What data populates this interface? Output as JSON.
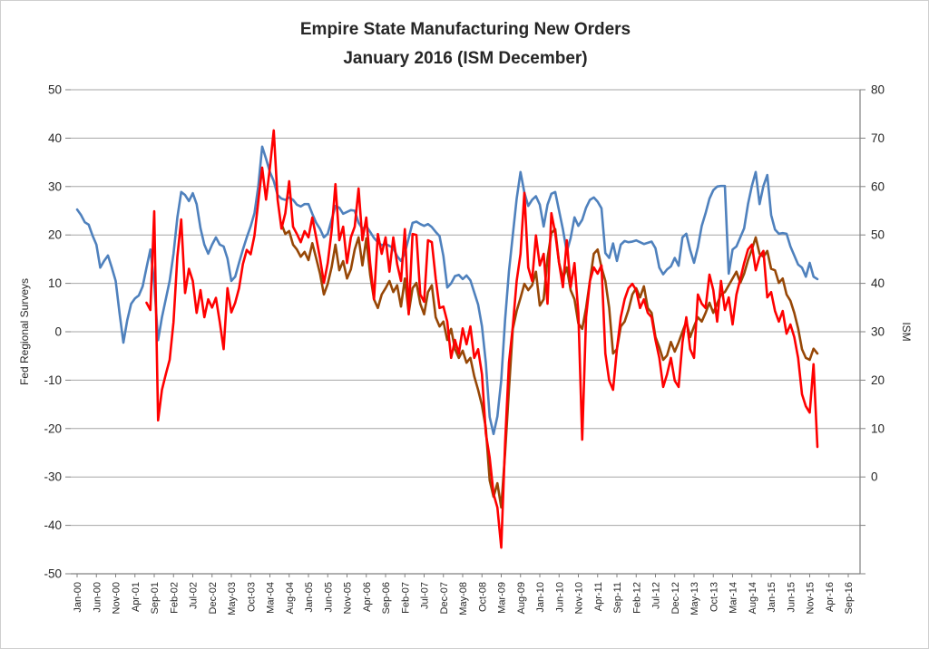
{
  "chart_data": {
    "type": "line",
    "title": "Empire State Manufacturing New Orders",
    "subtitle": "January 2016 (ISM December)",
    "x": {
      "start": "Jan-2000",
      "end": "Sep-2016",
      "frequency": "monthly",
      "tick_every_n_months": 5,
      "tick_labels": [
        "Jan-00",
        "Jun-00",
        "Nov-00",
        "Apr-01",
        "Sep-01",
        "Feb-02",
        "Jul-02",
        "Dec-02",
        "May-03",
        "Oct-03",
        "Mar-04",
        "Aug-04",
        "Jan-05",
        "Jun-05",
        "Nov-05",
        "Apr-06",
        "Sep-06",
        "Feb-07",
        "Jul-07",
        "Dec-07",
        "May-08",
        "Oct-08",
        "Mar-09",
        "Aug-09",
        "Jan-10",
        "Jun-10",
        "Nov-10",
        "Apr-11",
        "Sep-11",
        "Feb-12",
        "Jul-12",
        "Dec-12",
        "May-13",
        "Oct-13",
        "Mar-14",
        "Aug-14",
        "Jan-15",
        "Jun-15",
        "Nov-15",
        "Apr-16",
        "Sep-16"
      ]
    },
    "y_left": {
      "label": "Fed Regional Surveys",
      "min": -50,
      "max": 50,
      "tick_step": 10,
      "ticks": [
        50,
        40,
        30,
        20,
        10,
        0,
        -10,
        -20,
        -30,
        -40,
        -50
      ]
    },
    "y_right": {
      "label": "ISM",
      "min": 0,
      "max": 80,
      "tick_step": 10,
      "ticks": [
        80,
        70,
        60,
        50,
        40,
        30,
        20,
        10,
        0
      ]
    },
    "grid": true,
    "legend": "none",
    "colors": {
      "ism_blue": "#4F81BD",
      "empire_red": "#FF0000",
      "fed_avg_brown": "#974706",
      "gridline": "#A6A6A6",
      "axis_line": "#808080"
    },
    "series": [
      {
        "name": "ISM",
        "axis": "right",
        "color": "#4F81BD",
        "stroke_width": 2.6,
        "values": [
          60.2,
          59.3,
          58.1,
          57.7,
          55.9,
          54.4,
          50.6,
          51.7,
          52.6,
          50.6,
          48.4,
          43.1,
          38.2,
          41.9,
          44.6,
          45.5,
          46.0,
          47.5,
          50.6,
          53.6,
          48.0,
          38.6,
          42.4,
          45.4,
          48.4,
          52.9,
          58.9,
          63.1,
          62.6,
          61.6,
          62.9,
          61.1,
          57.1,
          54.4,
          52.9,
          54.4,
          55.6,
          54.4,
          54.1,
          52.1,
          48.4,
          49.1,
          51.4,
          53.6,
          55.6,
          57.4,
          59.6,
          64.1,
          70.6,
          68.6,
          66.4,
          64.9,
          62.6,
          62.0,
          61.8,
          62.2,
          61.8,
          61.0,
          60.7,
          61.1,
          61.1,
          59.5,
          58.0,
          57.0,
          55.6,
          56.2,
          58.5,
          60.8,
          60.5,
          59.5,
          59.8,
          60.1,
          60.0,
          58.0,
          57.0,
          57.5,
          56.5,
          55.5,
          54.8,
          54.3,
          54.5,
          54.2,
          53.8,
          52.5,
          51.7,
          53.0,
          55.5,
          58.0,
          58.2,
          57.8,
          57.5,
          57.8,
          57.3,
          56.5,
          55.8,
          52.5,
          47.3,
          48.0,
          49.2,
          49.4,
          48.7,
          49.3,
          48.5,
          46.5,
          44.5,
          40.9,
          34.9,
          25.9,
          23.1,
          26.0,
          32.0,
          42.0,
          50.0,
          56.0,
          62.0,
          66.4,
          63.0,
          60.8,
          61.8,
          62.4,
          61.0,
          57.4,
          61.0,
          62.8,
          63.1,
          60.0,
          56.9,
          53.2,
          55.5,
          58.9,
          57.5,
          58.5,
          60.5,
          61.8,
          62.2,
          61.5,
          60.4,
          53.0,
          52.2,
          54.6,
          51.7,
          54.4,
          55.0,
          54.8,
          54.9,
          55.1,
          54.8,
          54.5,
          54.7,
          54.9,
          53.8,
          50.6,
          49.5,
          50.3,
          50.8,
          52.2,
          50.9,
          55.6,
          56.2,
          53.5,
          51.4,
          54.0,
          57.5,
          59.6,
          62.0,
          63.4,
          64.0,
          64.1,
          64.1,
          49.6,
          53.6,
          54.1,
          55.6,
          57.1,
          61.1,
          64.1,
          66.4,
          61.1,
          64.1,
          65.9,
          59.3,
          56.9,
          56.2,
          56.3,
          56.2,
          54.1,
          52.6,
          51.1,
          50.6,
          49.1,
          51.4,
          49.1,
          48.7
        ]
      },
      {
        "name": "Fed Regional Surveys Average",
        "axis": "left",
        "color": "#974706",
        "stroke_width": 2.6,
        "values": [
          null,
          null,
          null,
          null,
          null,
          null,
          null,
          null,
          null,
          null,
          null,
          null,
          null,
          null,
          null,
          null,
          null,
          null,
          null,
          null,
          null,
          null,
          null,
          null,
          null,
          null,
          null,
          null,
          null,
          null,
          null,
          null,
          null,
          null,
          null,
          null,
          null,
          null,
          null,
          null,
          null,
          null,
          null,
          null,
          null,
          null,
          null,
          null,
          null,
          null,
          null,
          null,
          null,
          22.3,
          20.2,
          20.8,
          18.0,
          17.0,
          15.5,
          16.5,
          14.8,
          18.3,
          15.2,
          12.0,
          7.7,
          9.9,
          13.3,
          18.0,
          12.7,
          14.6,
          11.0,
          12.9,
          17.0,
          19.5,
          13.7,
          19.3,
          11.8,
          6.7,
          4.9,
          7.7,
          9.0,
          10.5,
          8.2,
          9.6,
          5.2,
          11.0,
          3.9,
          9.0,
          10.1,
          5.8,
          3.6,
          8.2,
          9.6,
          3.0,
          1.1,
          2.1,
          -1.7,
          0.6,
          -3.6,
          -5.4,
          -3.9,
          -6.4,
          -5.4,
          -9.2,
          -12.0,
          -15.2,
          -19.9,
          -30.7,
          -34.1,
          -31.3,
          -36.3,
          -25.0,
          -12.0,
          0.6,
          4.3,
          7.0,
          9.9,
          8.6,
          9.6,
          12.4,
          5.4,
          6.7,
          15.2,
          20.4,
          21.2,
          14.2,
          11.0,
          13.3,
          8.6,
          6.7,
          1.7,
          0.6,
          4.9,
          10.5,
          16.1,
          17.0,
          13.3,
          10.5,
          4.9,
          -4.5,
          -3.6,
          1.1,
          2.1,
          4.5,
          7.7,
          9.0,
          7.1,
          9.4,
          4.9,
          3.9,
          -1.1,
          -3.2,
          -5.8,
          -4.9,
          -2.1,
          -4.1,
          -2.2,
          0.0,
          2.1,
          -1.1,
          1.1,
          3.0,
          2.1,
          3.9,
          6.0,
          3.9,
          5.8,
          7.7,
          8.2,
          9.6,
          11.0,
          12.4,
          10.1,
          12.0,
          14.8,
          17.0,
          19.5,
          16.1,
          15.5,
          16.7,
          13.0,
          12.7,
          10.1,
          11.0,
          7.7,
          6.4,
          3.9,
          0.7,
          -3.6,
          -5.4,
          -5.8,
          -3.5,
          -4.5
        ]
      },
      {
        "name": "Empire State",
        "axis": "left",
        "color": "#FF0000",
        "stroke_width": 2.6,
        "values": [
          null,
          null,
          null,
          null,
          null,
          null,
          null,
          null,
          null,
          null,
          null,
          null,
          null,
          null,
          null,
          null,
          null,
          null,
          6.0,
          4.5,
          24.9,
          -18.3,
          -12.0,
          -8.8,
          -5.8,
          2.0,
          15.5,
          23.2,
          8.0,
          13.0,
          10.5,
          3.9,
          8.6,
          3.0,
          6.7,
          5.0,
          7.0,
          2.0,
          -3.6,
          9.0,
          4.0,
          6.0,
          9.0,
          14.0,
          16.9,
          16.0,
          19.9,
          27.0,
          33.9,
          27.3,
          33.9,
          41.6,
          27.3,
          21.3,
          24.5,
          31.1,
          21.7,
          20.2,
          18.5,
          20.8,
          19.5,
          23.6,
          19.5,
          15.2,
          10.1,
          14.2,
          20.8,
          30.5,
          18.9,
          21.7,
          14.2,
          19.5,
          21.7,
          29.6,
          18.9,
          23.6,
          14.2,
          6.7,
          20.2,
          16.1,
          19.5,
          12.4,
          19.5,
          14.0,
          10.5,
          21.2,
          3.6,
          20.2,
          20.0,
          7.7,
          6.2,
          18.9,
          18.5,
          11.0,
          4.9,
          5.2,
          2.1,
          -5.4,
          -1.7,
          -4.5,
          0.7,
          -2.6,
          1.1,
          -5.4,
          -3.6,
          -8.8,
          -21.0,
          -26.0,
          -33.5,
          -36.3,
          -44.6,
          -23.0,
          -6.4,
          1.1,
          10.5,
          16.1,
          28.7,
          13.3,
          10.5,
          19.9,
          13.7,
          16.1,
          5.8,
          24.5,
          20.4,
          14.2,
          9.2,
          18.9,
          9.2,
          14.2,
          3.9,
          -22.3,
          3.0,
          10.5,
          13.3,
          12.0,
          13.7,
          -4.5,
          -10.1,
          -12.0,
          -3.6,
          3.0,
          6.7,
          9.0,
          9.9,
          8.6,
          4.9,
          6.7,
          3.9,
          3.0,
          -1.7,
          -5.4,
          -11.4,
          -8.8,
          -5.4,
          -10.1,
          -11.4,
          -2.2,
          3.0,
          -3.6,
          -5.4,
          7.7,
          5.8,
          4.9,
          11.8,
          8.6,
          2.1,
          10.5,
          4.5,
          7.1,
          1.5,
          7.7,
          10.9,
          14.2,
          17.0,
          18.0,
          12.7,
          15.5,
          16.7,
          7.1,
          8.2,
          4.3,
          2.1,
          4.3,
          -0.4,
          1.5,
          -1.1,
          -5.4,
          -12.9,
          -15.4,
          -16.7,
          -6.7,
          -23.8
        ]
      }
    ]
  }
}
